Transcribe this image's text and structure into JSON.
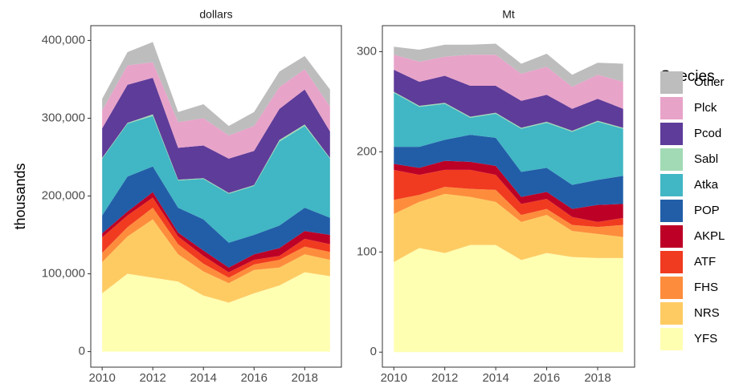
{
  "chart_data": [
    {
      "type": "area",
      "title": "dollars",
      "ylabel": "thousands",
      "legend_title": "Species",
      "x": [
        2010,
        2011,
        2012,
        2013,
        2014,
        2015,
        2016,
        2017,
        2018,
        2019
      ],
      "xlim": [
        2009.55,
        2019.45
      ],
      "xticks": [
        2010,
        2012,
        2014,
        2016,
        2018
      ],
      "ylim": [
        -20000,
        419000
      ],
      "yticks": [
        0,
        {
          "value": 100000,
          "label": "100,000"
        },
        {
          "value": 200000,
          "label": "200,000"
        },
        {
          "value": 300000,
          "label": "300,000"
        },
        {
          "value": 400000,
          "label": "400,000"
        }
      ],
      "grid": false,
      "stacked": true,
      "series": [
        {
          "name": "YFS",
          "color": "#ffffb2",
          "values": [
            75000,
            100000,
            95000,
            90000,
            72000,
            63000,
            75000,
            85000,
            102000,
            97000
          ]
        },
        {
          "name": "NRS",
          "color": "#fecb63",
          "values": [
            40000,
            48000,
            75000,
            35000,
            31000,
            25000,
            30000,
            23000,
            23000,
            21000
          ]
        },
        {
          "name": "FHS",
          "color": "#fd8d3c",
          "values": [
            12000,
            12000,
            15000,
            13000,
            10000,
            7000,
            7000,
            10000,
            10000,
            10000
          ]
        },
        {
          "name": "ATF",
          "color": "#f03b20",
          "values": [
            20000,
            15000,
            13000,
            10000,
            10000,
            7000,
            6000,
            5000,
            10000,
            10000
          ]
        },
        {
          "name": "AKPL",
          "color": "#bd0026",
          "values": [
            5000,
            5000,
            7000,
            5000,
            7000,
            6000,
            7000,
            10000,
            10000,
            12000
          ]
        },
        {
          "name": "POP",
          "color": "#225ea8",
          "values": [
            23000,
            45000,
            33000,
            32000,
            40000,
            32000,
            25000,
            29000,
            30000,
            22000
          ]
        },
        {
          "name": "Atka",
          "color": "#41b6c4",
          "values": [
            73000,
            68000,
            65000,
            35000,
            52000,
            63000,
            63000,
            108000,
            105000,
            76000
          ]
        },
        {
          "name": "Sabl",
          "color": "#a1dab4",
          "values": [
            1000,
            1000,
            2000,
            1000,
            1000,
            1000,
            1000,
            2000,
            2000,
            1000
          ]
        },
        {
          "name": "Pcod",
          "color": "#5e3c99",
          "values": [
            38000,
            49000,
            47000,
            41000,
            42000,
            44000,
            44000,
            40000,
            45000,
            34000
          ]
        },
        {
          "name": "Plck",
          "color": "#e8a3c9",
          "values": [
            23000,
            25000,
            20000,
            33000,
            35000,
            30000,
            32000,
            28000,
            26000,
            32000
          ]
        },
        {
          "name": "Other",
          "color": "#bdbdbd",
          "values": [
            15000,
            17000,
            26000,
            13000,
            18000,
            12000,
            18000,
            20000,
            17000,
            22000
          ]
        }
      ]
    },
    {
      "type": "area",
      "title": "Mt",
      "x": [
        2010,
        2011,
        2012,
        2013,
        2014,
        2015,
        2016,
        2017,
        2018,
        2019
      ],
      "xlim": [
        2009.55,
        2019.45
      ],
      "xticks": [
        2010,
        2012,
        2014,
        2016,
        2018
      ],
      "ylim": [
        -15,
        326
      ],
      "yticks": [
        0,
        100,
        200,
        300
      ],
      "grid": false,
      "stacked": true,
      "series": [
        {
          "name": "YFS",
          "color": "#ffffb2",
          "values": [
            90,
            104,
            99,
            107,
            107,
            92,
            99,
            95,
            94,
            94
          ]
        },
        {
          "name": "NRS",
          "color": "#fecb63",
          "values": [
            48,
            46,
            59,
            48,
            43,
            38,
            38,
            26,
            24,
            21
          ]
        },
        {
          "name": "FHS",
          "color": "#fd8d3c",
          "values": [
            14,
            7,
            7,
            8,
            12,
            7,
            6,
            6,
            7,
            12
          ]
        },
        {
          "name": "ATF",
          "color": "#f03b20",
          "values": [
            30,
            20,
            17,
            19,
            15,
            11,
            10,
            8,
            5,
            7
          ]
        },
        {
          "name": "AKPL",
          "color": "#bd0026",
          "values": [
            6,
            7,
            9,
            8,
            9,
            7,
            7,
            8,
            17,
            14
          ]
        },
        {
          "name": "POP",
          "color": "#225ea8",
          "values": [
            17,
            21,
            21,
            27,
            28,
            25,
            24,
            24,
            25,
            28
          ]
        },
        {
          "name": "Atka",
          "color": "#41b6c4",
          "values": [
            54,
            40,
            36,
            17,
            24,
            43,
            45,
            53,
            58,
            47
          ]
        },
        {
          "name": "Sabl",
          "color": "#a1dab4",
          "values": [
            1,
            1,
            1,
            1,
            1,
            1,
            1,
            1,
            1,
            1
          ]
        },
        {
          "name": "Pcod",
          "color": "#5e3c99",
          "values": [
            22,
            24,
            27,
            31,
            27,
            27,
            27,
            22,
            22,
            19
          ]
        },
        {
          "name": "Plck",
          "color": "#e8a3c9",
          "values": [
            15,
            20,
            19,
            31,
            31,
            27,
            28,
            22,
            24,
            27
          ]
        },
        {
          "name": "Other",
          "color": "#bdbdbd",
          "values": [
            8,
            12,
            12,
            10,
            11,
            10,
            13,
            12,
            12,
            18
          ]
        }
      ]
    }
  ]
}
